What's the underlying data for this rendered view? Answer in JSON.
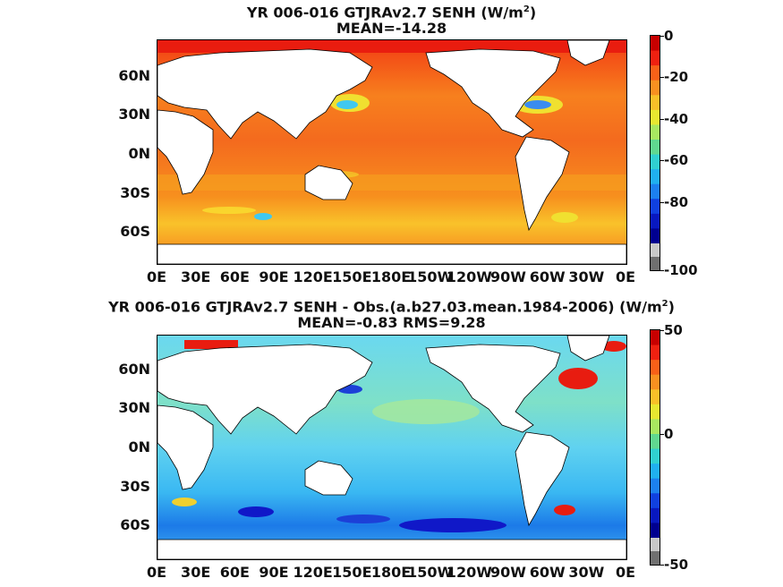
{
  "panels": [
    {
      "title_line1_prefix": "YR 006-016 GTJRAv2.7  SENH (W/m",
      "title_line1_sup": "2",
      "title_line1_suffix": ")",
      "title_line2": "MEAN=-14.28",
      "lat_labels": [
        "60N",
        "30N",
        "0N",
        "30S",
        "60S"
      ],
      "lon_labels": [
        "0E",
        "30E",
        "60E",
        "90E",
        "120E",
        "150E",
        "180E",
        "150W",
        "120W",
        "90W",
        "60W",
        "30W",
        "0E"
      ],
      "colorbar_labels": [
        "0",
        "-20",
        "-40",
        "-60",
        "-80",
        "-100"
      ],
      "colorbar_range": [
        -100,
        0
      ]
    },
    {
      "title_line1_prefix": "YR 006-016 GTJRAv2.7 SENH - Obs.(a.b27.03.mean.1984-2006) (W/m",
      "title_line1_sup": "2",
      "title_line1_suffix": ")",
      "title_line2": "MEAN=-0.83 RMS=9.28",
      "lat_labels": [
        "60N",
        "30N",
        "0N",
        "30S",
        "60S"
      ],
      "lon_labels": [
        "0E",
        "30E",
        "60E",
        "90E",
        "120E",
        "150E",
        "180E",
        "150W",
        "120W",
        "90W",
        "60W",
        "30W",
        "0E"
      ],
      "colorbar_labels": [
        "50",
        "0",
        "-50"
      ],
      "colorbar_range": [
        -50,
        50
      ]
    }
  ],
  "colors": {
    "land": "#ffffff",
    "ocean_top": "#f46a1e",
    "ocean_bottom": "#5fd0f0"
  }
}
